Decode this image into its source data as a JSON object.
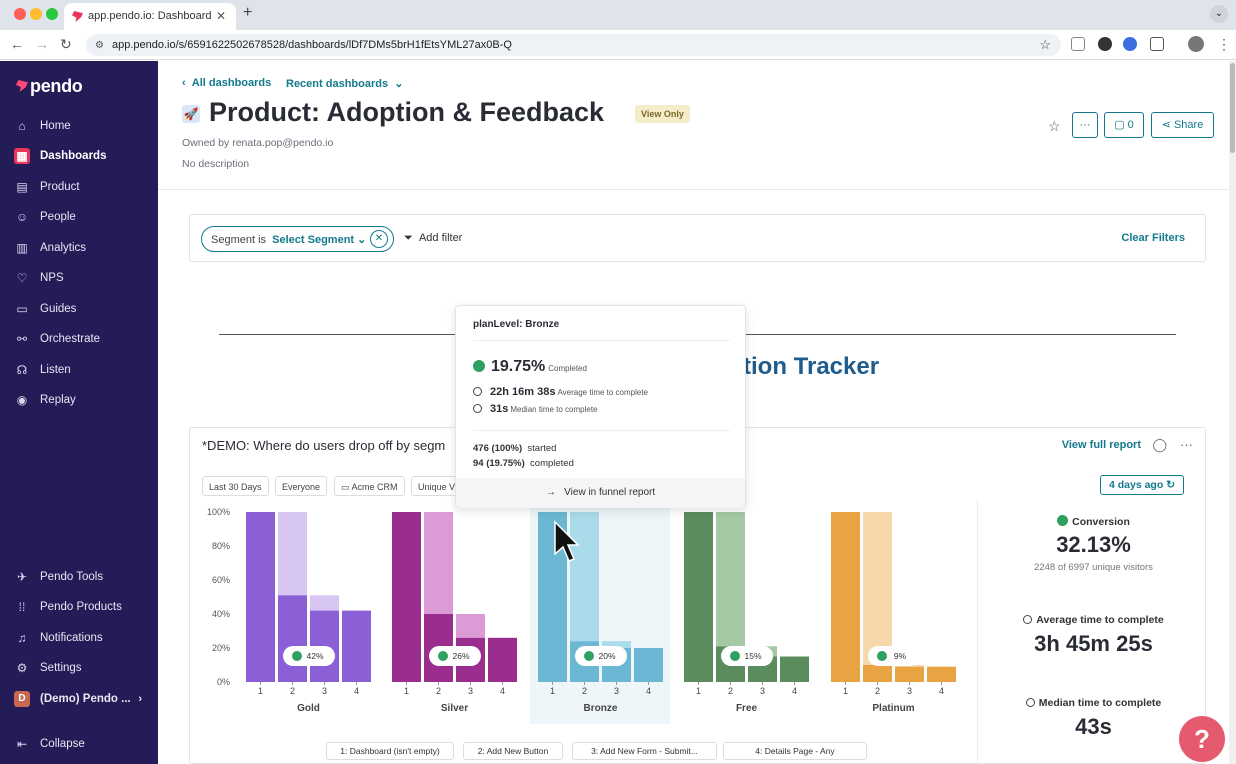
{
  "browser": {
    "tab_title": "app.pendo.io: Dashboard",
    "url": "app.pendo.io/s/6591622502678528/dashboards/lDf7DMs5brH1fEtsYML27ax0B-Q"
  },
  "sidebar": {
    "logo": "pendo",
    "items": [
      {
        "label": "Home",
        "icon": "home-icon"
      },
      {
        "label": "Dashboards",
        "icon": "dashboards-icon"
      },
      {
        "label": "Product",
        "icon": "product-icon"
      },
      {
        "label": "People",
        "icon": "people-icon"
      },
      {
        "label": "Analytics",
        "icon": "analytics-icon"
      },
      {
        "label": "NPS",
        "icon": "heart-icon"
      },
      {
        "label": "Guides",
        "icon": "guides-icon"
      },
      {
        "label": "Orchestrate",
        "icon": "orchestrate-icon"
      },
      {
        "label": "Listen",
        "icon": "listen-icon"
      },
      {
        "label": "Replay",
        "icon": "replay-icon"
      }
    ],
    "bottom_items": [
      {
        "label": "Pendo Tools",
        "icon": "tools-icon"
      },
      {
        "label": "Pendo Products",
        "icon": "grid-icon"
      },
      {
        "label": "Notifications",
        "icon": "bell-icon"
      },
      {
        "label": "Settings",
        "icon": "gear-icon"
      },
      {
        "label": "(Demo) Pendo ...",
        "icon": "account-avatar",
        "avatar_letter": "D"
      }
    ],
    "collapse_label": "Collapse"
  },
  "header": {
    "breadcrumb_all": "All dashboards",
    "breadcrumb_recent": "Recent dashboards",
    "title": "Product: Adoption & Feedback",
    "view_only": "View Only",
    "owner": "Owned by renata.pop@pendo.io",
    "description": "No description",
    "comments_count": "0",
    "share_label": "Share",
    "more_label": "···"
  },
  "filters": {
    "segment_prefix": "Segment is",
    "segment_value": "Select Segment",
    "add_filter": "Add filter",
    "clear_filters": "Clear Filters"
  },
  "section_title_visible": "tion Tracker",
  "report": {
    "title": "*DEMO: Where do users drop off by segm",
    "view_full_report": "View full report",
    "chips": [
      "Last 30 Days",
      "Everyone",
      "Acme CRM",
      "Unique V"
    ],
    "updated": "4 days ago",
    "steps": [
      "1: Dashboard (isn't empty)",
      "2: Add New Button",
      "3: Add New Form - Submit...",
      "4: Details Page - Any"
    ],
    "stats": {
      "conversion_label": "Conversion",
      "conversion_value": "32.13%",
      "conversion_sub": "2248 of 6997 unique visitors",
      "avg_label": "Average time to complete",
      "avg_value": "3h 45m 25s",
      "median_label": "Median time to complete",
      "median_value": "43s"
    }
  },
  "tooltip": {
    "title": "planLevel: Bronze",
    "completed_pct": "19.75%",
    "completed_label": "Completed",
    "avg_time": "22h 16m 38s",
    "avg_label": "Average time to complete",
    "median_time": "31s",
    "median_label": "Median time to complete",
    "started": "476 (100%)",
    "started_label": "started",
    "completed": "94 (19.75%)",
    "completed_count_label": "completed",
    "link": "View in funnel report"
  },
  "help_label": "?",
  "chart_data": {
    "type": "bar",
    "title": "*DEMO: Where do users drop off by segment",
    "y_ticks": [
      "100%",
      "80%",
      "60%",
      "40%",
      "20%",
      "0%"
    ],
    "ylim": [
      0,
      100
    ],
    "step_labels": [
      "1",
      "2",
      "3",
      "4"
    ],
    "groups": [
      {
        "name": "Gold",
        "color": "#8b5fd6",
        "light": "#d7c6f3",
        "values": [
          100,
          51,
          42,
          42
        ],
        "prev": [
          100,
          100,
          51,
          42
        ],
        "badge": "42%"
      },
      {
        "name": "Silver",
        "color": "#9a2d8e",
        "light": "#dc9ad6",
        "values": [
          100,
          40,
          26,
          26
        ],
        "prev": [
          100,
          100,
          40,
          26
        ],
        "badge": "26%"
      },
      {
        "name": "Bronze",
        "color": "#6cb8d4",
        "light": "#aadbea",
        "values": [
          100,
          24,
          20,
          20
        ],
        "prev": [
          100,
          100,
          24,
          20
        ],
        "badge": "20%",
        "highlight": true
      },
      {
        "name": "Free",
        "color": "#5b8c5e",
        "light": "#a5c9a4",
        "values": [
          100,
          21,
          15,
          15
        ],
        "prev": [
          100,
          100,
          21,
          15
        ],
        "badge": "15%"
      },
      {
        "name": "Platinum",
        "color": "#eaa342",
        "light": "#f7d8ac",
        "values": [
          100,
          10,
          9,
          9
        ],
        "prev": [
          100,
          100,
          10,
          9
        ],
        "badge": "9%"
      }
    ]
  }
}
